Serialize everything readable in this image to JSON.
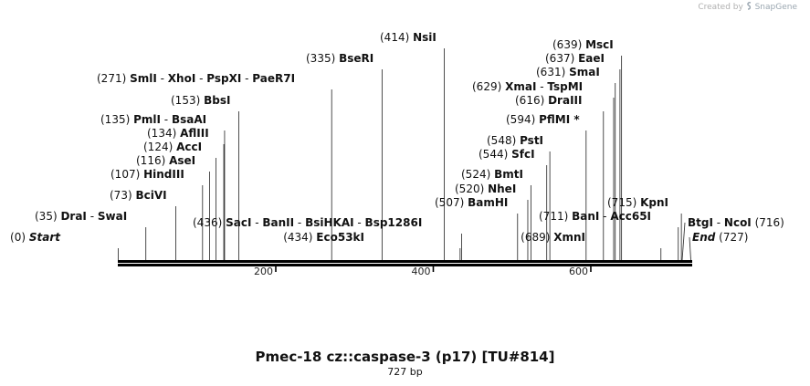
{
  "credit": {
    "prefix": "Created by",
    "brand": "SnapGene",
    "logo_icon": "snapgene-logo-icon"
  },
  "title": "Pmec-18 cz::caspase-3 (p17) [TU#814]",
  "length_label": "727 bp",
  "sequence_length": 727,
  "ticks": [
    {
      "value": 200,
      "label": "200"
    },
    {
      "value": 400,
      "label": "400"
    },
    {
      "value": 600,
      "label": "600"
    }
  ],
  "labels": [
    {
      "id": "start",
      "names": [
        "Start"
      ],
      "position": "0",
      "coord": 0,
      "italic": true
    },
    {
      "id": "drai",
      "names": [
        "DraI",
        "SwaI"
      ],
      "position": "35",
      "coord": 35
    },
    {
      "id": "bcivi",
      "names": [
        "BciVI"
      ],
      "position": "73",
      "coord": 73
    },
    {
      "id": "hindiii",
      "names": [
        "HindIII"
      ],
      "position": "107",
      "coord": 107
    },
    {
      "id": "asei",
      "names": [
        "AseI"
      ],
      "position": "116",
      "coord": 116
    },
    {
      "id": "acci",
      "names": [
        "AccI"
      ],
      "position": "124",
      "coord": 124
    },
    {
      "id": "afliii",
      "names": [
        "AflIII"
      ],
      "position": "134",
      "coord": 134
    },
    {
      "id": "pmli",
      "names": [
        "PmlI",
        "BsaAI"
      ],
      "position": "135",
      "coord": 135
    },
    {
      "id": "bbsi",
      "names": [
        "BbsI"
      ],
      "position": "153",
      "coord": 153
    },
    {
      "id": "smli",
      "names": [
        "SmlI",
        "XhoI",
        "PspXI",
        "PaeR7I"
      ],
      "position": "271",
      "coord": 271
    },
    {
      "id": "bseri",
      "names": [
        "BseRI"
      ],
      "position": "335",
      "coord": 335
    },
    {
      "id": "nsii",
      "names": [
        "NsiI"
      ],
      "position": "414",
      "coord": 414
    },
    {
      "id": "eco53ki",
      "names": [
        "Eco53kI"
      ],
      "position": "434",
      "coord": 434
    },
    {
      "id": "saci",
      "names": [
        "SacI",
        "BanII",
        "BsiHKAI",
        "Bsp1286I"
      ],
      "position": "436",
      "coord": 436
    },
    {
      "id": "bamhi",
      "names": [
        "BamHI"
      ],
      "position": "507",
      "coord": 507
    },
    {
      "id": "nhei",
      "names": [
        "NheI"
      ],
      "position": "520",
      "coord": 520
    },
    {
      "id": "bmti",
      "names": [
        "BmtI"
      ],
      "position": "524",
      "coord": 524
    },
    {
      "id": "sfci",
      "names": [
        "SfcI"
      ],
      "position": "544",
      "coord": 544
    },
    {
      "id": "psti",
      "names": [
        "PstI"
      ],
      "position": "548",
      "coord": 548
    },
    {
      "id": "pflmi",
      "names": [
        "PflMI *"
      ],
      "position": "594",
      "coord": 594
    },
    {
      "id": "draiii",
      "names": [
        "DraIII"
      ],
      "position": "616",
      "coord": 616
    },
    {
      "id": "xmai",
      "names": [
        "XmaI",
        "TspMI"
      ],
      "position": "629",
      "coord": 629
    },
    {
      "id": "smai",
      "names": [
        "SmaI"
      ],
      "position": "631",
      "coord": 631
    },
    {
      "id": "eaei",
      "names": [
        "EaeI"
      ],
      "position": "637",
      "coord": 637
    },
    {
      "id": "msci",
      "names": [
        "MscI"
      ],
      "position": "639",
      "coord": 639
    },
    {
      "id": "xmni",
      "names": [
        "XmnI"
      ],
      "position": "689",
      "coord": 689
    },
    {
      "id": "bani",
      "names": [
        "BanI",
        "Acc65I"
      ],
      "position": "711",
      "coord": 711
    },
    {
      "id": "kpni",
      "names": [
        "KpnI"
      ],
      "position": "715",
      "coord": 715
    },
    {
      "id": "btgi",
      "names": [
        "BtgI",
        "NcoI"
      ],
      "position": "716",
      "coord": 716
    },
    {
      "id": "end",
      "names": [
        "End"
      ],
      "position": "727",
      "coord": 727,
      "italic": true
    }
  ]
}
